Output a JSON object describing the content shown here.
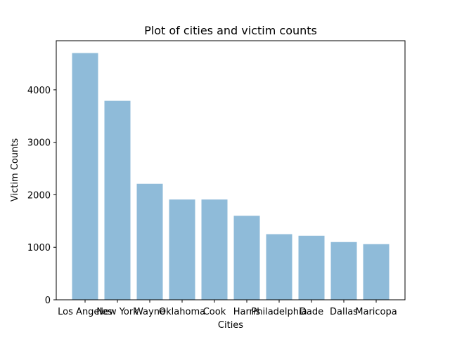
{
  "chart_data": {
    "type": "bar",
    "title": "Plot of cities and victim counts",
    "xlabel": "Cities",
    "ylabel": "Victim Counts",
    "categories": [
      "Los Angeles",
      "New York",
      "Wayne",
      "Oklahoma",
      "Cook",
      "Harris",
      "Philadelphia",
      "Dade",
      "Dallas",
      "Maricopa"
    ],
    "values": [
      4700,
      3790,
      2210,
      1910,
      1910,
      1600,
      1250,
      1220,
      1100,
      1060
    ],
    "ylim": [
      0,
      4935
    ],
    "yticks": [
      0,
      1000,
      2000,
      3000,
      4000
    ],
    "ytick_labels": [
      "0",
      "1000",
      "2000",
      "3000",
      "4000"
    ],
    "bar_color": "#1f77b4",
    "bar_alpha": 0.5,
    "grid": false
  }
}
